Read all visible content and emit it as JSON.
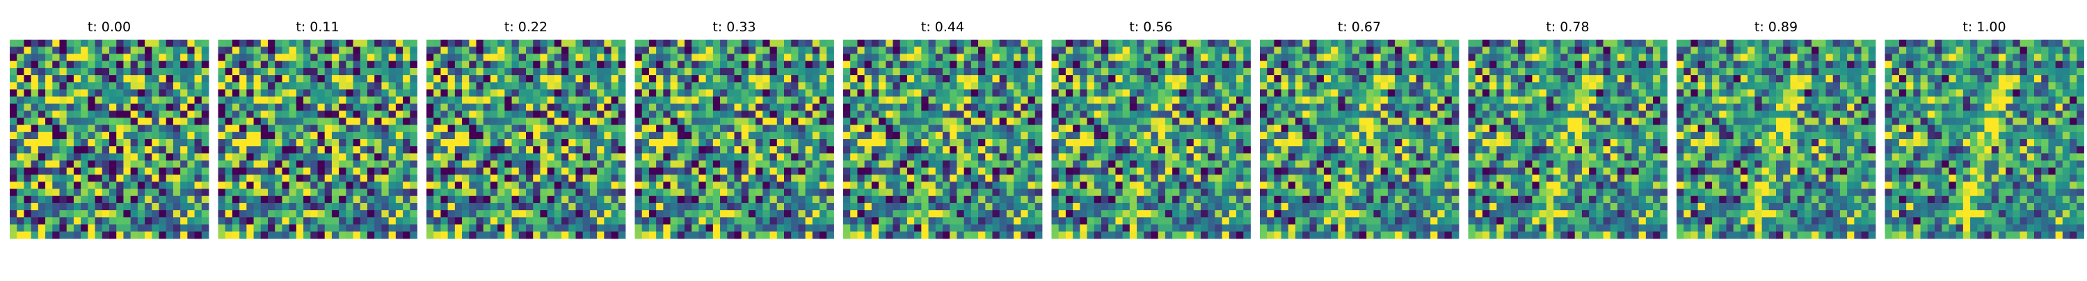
{
  "chart_data": {
    "type": "heatmap",
    "grid": "off",
    "axes": "off",
    "colormap": "viridis",
    "colormap_stops": [
      "#440154",
      "#3b528b",
      "#21918c",
      "#5ec962",
      "#fde725"
    ],
    "value_range": [
      0,
      1
    ],
    "panels": [
      {
        "title": "t: 0.00",
        "t": 0.0
      },
      {
        "title": "t: 0.11",
        "t": 0.11
      },
      {
        "title": "t: 0.22",
        "t": 0.22
      },
      {
        "title": "t: 0.33",
        "t": 0.33
      },
      {
        "title": "t: 0.44",
        "t": 0.44
      },
      {
        "title": "t: 0.56",
        "t": 0.56
      },
      {
        "title": "t: 0.67",
        "t": 0.67
      },
      {
        "title": "t: 0.78",
        "t": 0.78
      },
      {
        "title": "t: 0.89",
        "t": 0.89
      },
      {
        "title": "t: 1.00",
        "t": 1.0
      }
    ]
  }
}
